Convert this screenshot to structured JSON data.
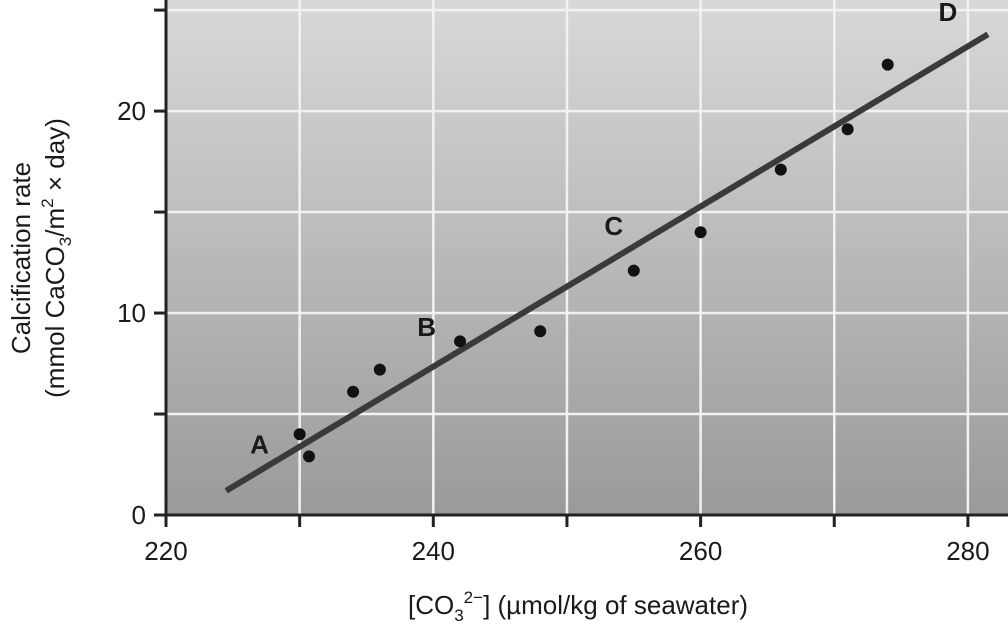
{
  "chart_data": {
    "type": "scatter",
    "title": "",
    "xlabel": {
      "main": "[CO",
      "sub": "3",
      "sup": "2−",
      "rest": "] (µmol/kg of seawater)"
    },
    "ylabel": {
      "line1": "Calcification rate",
      "line2_pre": "(mmol CaCO",
      "line2_sub": "3",
      "line2_mid": "/m",
      "line2_sup": "2",
      "line2_post": " × day)"
    },
    "xlim": [
      220,
      283
    ],
    "ylim": [
      0,
      25.5
    ],
    "x_ticks": [
      220,
      240,
      260,
      280
    ],
    "x_minor_ticks": [
      230,
      250,
      270
    ],
    "y_ticks": [
      0,
      10,
      20
    ],
    "y_minor_ticks": [
      5,
      15,
      25
    ],
    "grid": true,
    "points": [
      {
        "x": 230,
        "y": 4.0
      },
      {
        "x": 230.7,
        "y": 2.9
      },
      {
        "x": 234,
        "y": 6.1
      },
      {
        "x": 236,
        "y": 7.2
      },
      {
        "x": 242,
        "y": 8.6
      },
      {
        "x": 248,
        "y": 9.1
      },
      {
        "x": 255,
        "y": 12.1
      },
      {
        "x": 260,
        "y": 14.0
      },
      {
        "x": 266,
        "y": 17.1
      },
      {
        "x": 271,
        "y": 19.1
      },
      {
        "x": 274,
        "y": 22.3
      }
    ],
    "trendline": {
      "x0": 224.5,
      "y0": 1.2,
      "x1": 281.5,
      "y1": 23.8
    },
    "annotations": [
      {
        "text": "A",
        "x": 227,
        "y": 3.5
      },
      {
        "text": "B",
        "x": 239.5,
        "y": 9.3
      },
      {
        "text": "C",
        "x": 253.5,
        "y": 14.3
      },
      {
        "text": "D",
        "x": 278.5,
        "y": 24.9
      }
    ],
    "colors": {
      "plot_bg_top": "#d8d8d8",
      "plot_bg_bottom": "#9a9a9a",
      "grid": "#f2f2f2",
      "line": "#3a3a3a",
      "points": "#111111",
      "axis": "#222222"
    }
  }
}
